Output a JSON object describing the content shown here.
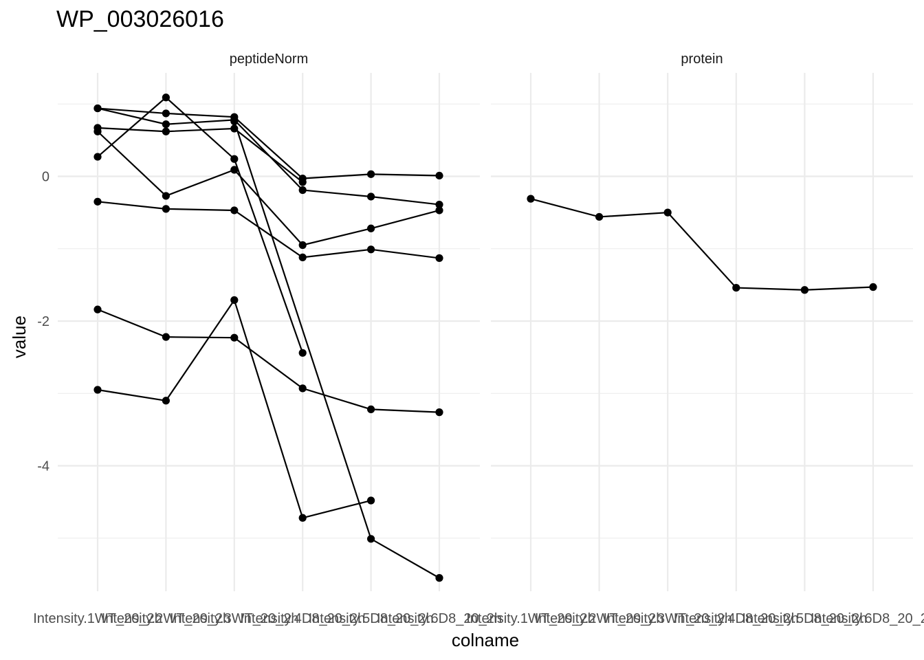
{
  "chart_data": {
    "type": "line",
    "title": "WP_003026016",
    "xlabel": "colname",
    "ylabel": "value",
    "ylim": [
      -5.75,
      1.3
    ],
    "y_ticks": [
      0,
      -2,
      -4
    ],
    "y_tick_labels": [
      "0",
      "-2",
      "-4"
    ],
    "grid": true,
    "categories": [
      "Intensity.1WT_20_2h",
      "Intensity.2WT_20_2h",
      "Intensity.3WT_20_2h",
      "Intensity.4D8_20_2h",
      "Intensity.5D8_20_2h",
      "Intensity.6D8_20_2h"
    ],
    "x_tick_text": "Intensity.1WT_20_2hIntensity.2WT_20_2hIntensity.3WT_20_2hIntensity.4D8_20_2hIntensity.5D8_20_2hIntensity.6D8_20_2h",
    "panels": [
      {
        "strip": "peptideNorm",
        "series": [
          {
            "values": [
              0.94,
              0.87,
              0.82,
              -0.03,
              0.03,
              0.01
            ]
          },
          {
            "values": [
              0.94,
              0.72,
              0.78,
              -0.19,
              -0.28,
              -0.39
            ]
          },
          {
            "values": [
              0.27,
              1.09,
              0.24,
              -2.44,
              null,
              null
            ]
          },
          {
            "values": [
              0.67,
              0.62,
              0.66,
              -0.08,
              null,
              null
            ]
          },
          {
            "values": [
              0.62,
              -0.27,
              0.09,
              -0.95,
              -0.72,
              -0.47
            ]
          },
          {
            "values": [
              -0.35,
              -0.45,
              -0.47,
              -1.12,
              -1.01,
              -1.13
            ]
          },
          {
            "values": [
              -1.84,
              -2.22,
              -2.23,
              -2.93,
              -3.22,
              -3.26
            ]
          },
          {
            "values": [
              -2.95,
              -3.1,
              -1.71,
              -4.72,
              -4.48,
              null
            ]
          },
          {
            "values": [
              null,
              null,
              0.76,
              null,
              -5.01,
              -5.55
            ]
          }
        ]
      },
      {
        "strip": "protein",
        "series": [
          {
            "values": [
              -0.31,
              -0.56,
              -0.5,
              -1.54,
              -1.57,
              -1.53
            ]
          }
        ]
      }
    ]
  }
}
